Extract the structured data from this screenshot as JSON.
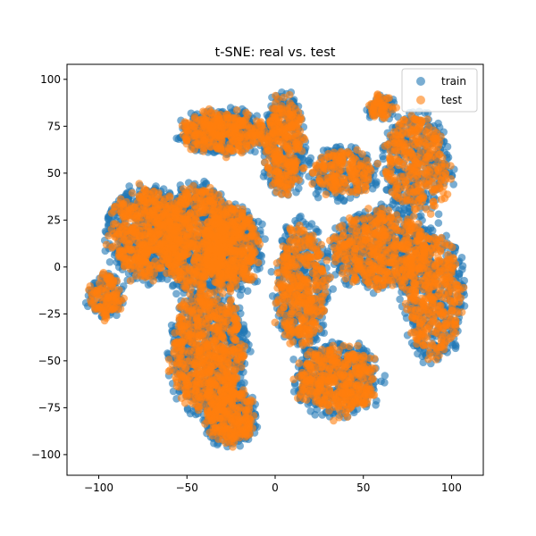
{
  "chart_data": {
    "type": "scatter",
    "title": "t-SNE: real vs. test",
    "xlabel": "",
    "ylabel": "",
    "xlim": [
      -118,
      118
    ],
    "ylim": [
      -111,
      108
    ],
    "xticks": [
      -100,
      -50,
      0,
      50,
      100
    ],
    "yticks": [
      -100,
      -75,
      -50,
      -25,
      0,
      25,
      50,
      75,
      100
    ],
    "grid": false,
    "legend_position": "top-right",
    "series": [
      {
        "name": "train",
        "color": "#1f77b4",
        "alpha": 0.6,
        "clusters": [
          {
            "cx": -30,
            "cy": 72,
            "rx": 25,
            "ry": 12,
            "n": 340
          },
          {
            "cx": -72,
            "cy": 18,
            "rx": 24,
            "ry": 26,
            "n": 520
          },
          {
            "cx": -96,
            "cy": -15,
            "rx": 10,
            "ry": 12,
            "n": 120
          },
          {
            "cx": -45,
            "cy": 15,
            "rx": 22,
            "ry": 30,
            "n": 500
          },
          {
            "cx": -25,
            "cy": 10,
            "rx": 18,
            "ry": 24,
            "n": 420
          },
          {
            "cx": -38,
            "cy": -45,
            "rx": 22,
            "ry": 35,
            "n": 620
          },
          {
            "cx": -25,
            "cy": -80,
            "rx": 15,
            "ry": 16,
            "n": 260
          },
          {
            "cx": 5,
            "cy": 65,
            "rx": 12,
            "ry": 28,
            "n": 300
          },
          {
            "cx": 38,
            "cy": 50,
            "rx": 20,
            "ry": 14,
            "n": 200
          },
          {
            "cx": 80,
            "cy": 55,
            "rx": 20,
            "ry": 28,
            "n": 320
          },
          {
            "cx": 60,
            "cy": 10,
            "rx": 30,
            "ry": 22,
            "n": 480
          },
          {
            "cx": 90,
            "cy": -15,
            "rx": 18,
            "ry": 35,
            "n": 380
          },
          {
            "cx": 15,
            "cy": -10,
            "rx": 15,
            "ry": 35,
            "n": 380
          },
          {
            "cx": 35,
            "cy": -60,
            "rx": 25,
            "ry": 20,
            "n": 420
          },
          {
            "cx": 60,
            "cy": 85,
            "rx": 8,
            "ry": 6,
            "n": 60
          }
        ]
      },
      {
        "name": "test",
        "color": "#ff7f0e",
        "alpha": 0.6,
        "clusters": [
          {
            "cx": -30,
            "cy": 72,
            "rx": 23,
            "ry": 11,
            "n": 300
          },
          {
            "cx": -72,
            "cy": 18,
            "rx": 22,
            "ry": 24,
            "n": 460
          },
          {
            "cx": -96,
            "cy": -15,
            "rx": 9,
            "ry": 11,
            "n": 100
          },
          {
            "cx": -45,
            "cy": 15,
            "rx": 20,
            "ry": 28,
            "n": 440
          },
          {
            "cx": -25,
            "cy": 10,
            "rx": 16,
            "ry": 22,
            "n": 380
          },
          {
            "cx": -38,
            "cy": -45,
            "rx": 20,
            "ry": 33,
            "n": 560
          },
          {
            "cx": -25,
            "cy": -80,
            "rx": 13,
            "ry": 15,
            "n": 220
          },
          {
            "cx": 5,
            "cy": 65,
            "rx": 11,
            "ry": 26,
            "n": 260
          },
          {
            "cx": 38,
            "cy": 50,
            "rx": 18,
            "ry": 12,
            "n": 160
          },
          {
            "cx": 80,
            "cy": 55,
            "rx": 18,
            "ry": 26,
            "n": 280
          },
          {
            "cx": 60,
            "cy": 10,
            "rx": 28,
            "ry": 20,
            "n": 420
          },
          {
            "cx": 90,
            "cy": -15,
            "rx": 16,
            "ry": 33,
            "n": 320
          },
          {
            "cx": 15,
            "cy": -10,
            "rx": 14,
            "ry": 33,
            "n": 330
          },
          {
            "cx": 35,
            "cy": -60,
            "rx": 23,
            "ry": 18,
            "n": 360
          },
          {
            "cx": 60,
            "cy": 85,
            "rx": 7,
            "ry": 5,
            "n": 50
          }
        ]
      }
    ]
  }
}
